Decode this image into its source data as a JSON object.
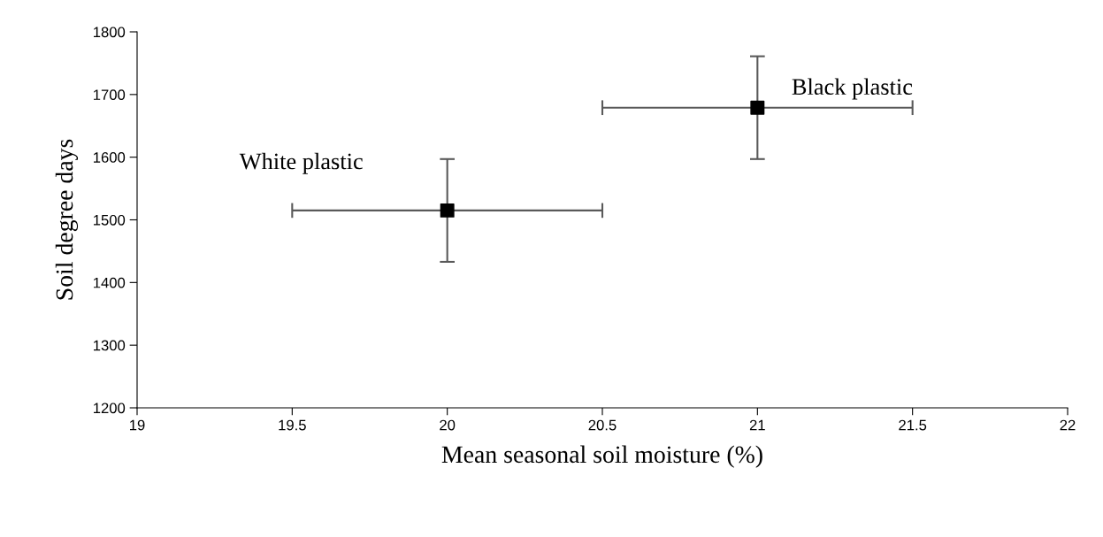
{
  "chart_data": {
    "type": "scatter",
    "xlabel": "Mean seasonal soil moisture (%)",
    "ylabel": "Soil degree days",
    "x": [
      20,
      21
    ],
    "values": [
      1515,
      1679
    ],
    "errors": [
      82,
      82
    ],
    "xerrors": [
      0.5,
      0.5
    ],
    "color": "#000000",
    "marker": "square",
    "xlim": [
      19,
      22
    ],
    "xticks": [
      19,
      19.5,
      20,
      20.5,
      21,
      21.5,
      22
    ],
    "ylim": [
      1200,
      1800
    ],
    "yticks": [
      1200,
      1300,
      1400,
      1500,
      1600,
      1700,
      1800
    ],
    "grid": false,
    "annotations": [
      "White plastic",
      "Black plastic"
    ]
  }
}
